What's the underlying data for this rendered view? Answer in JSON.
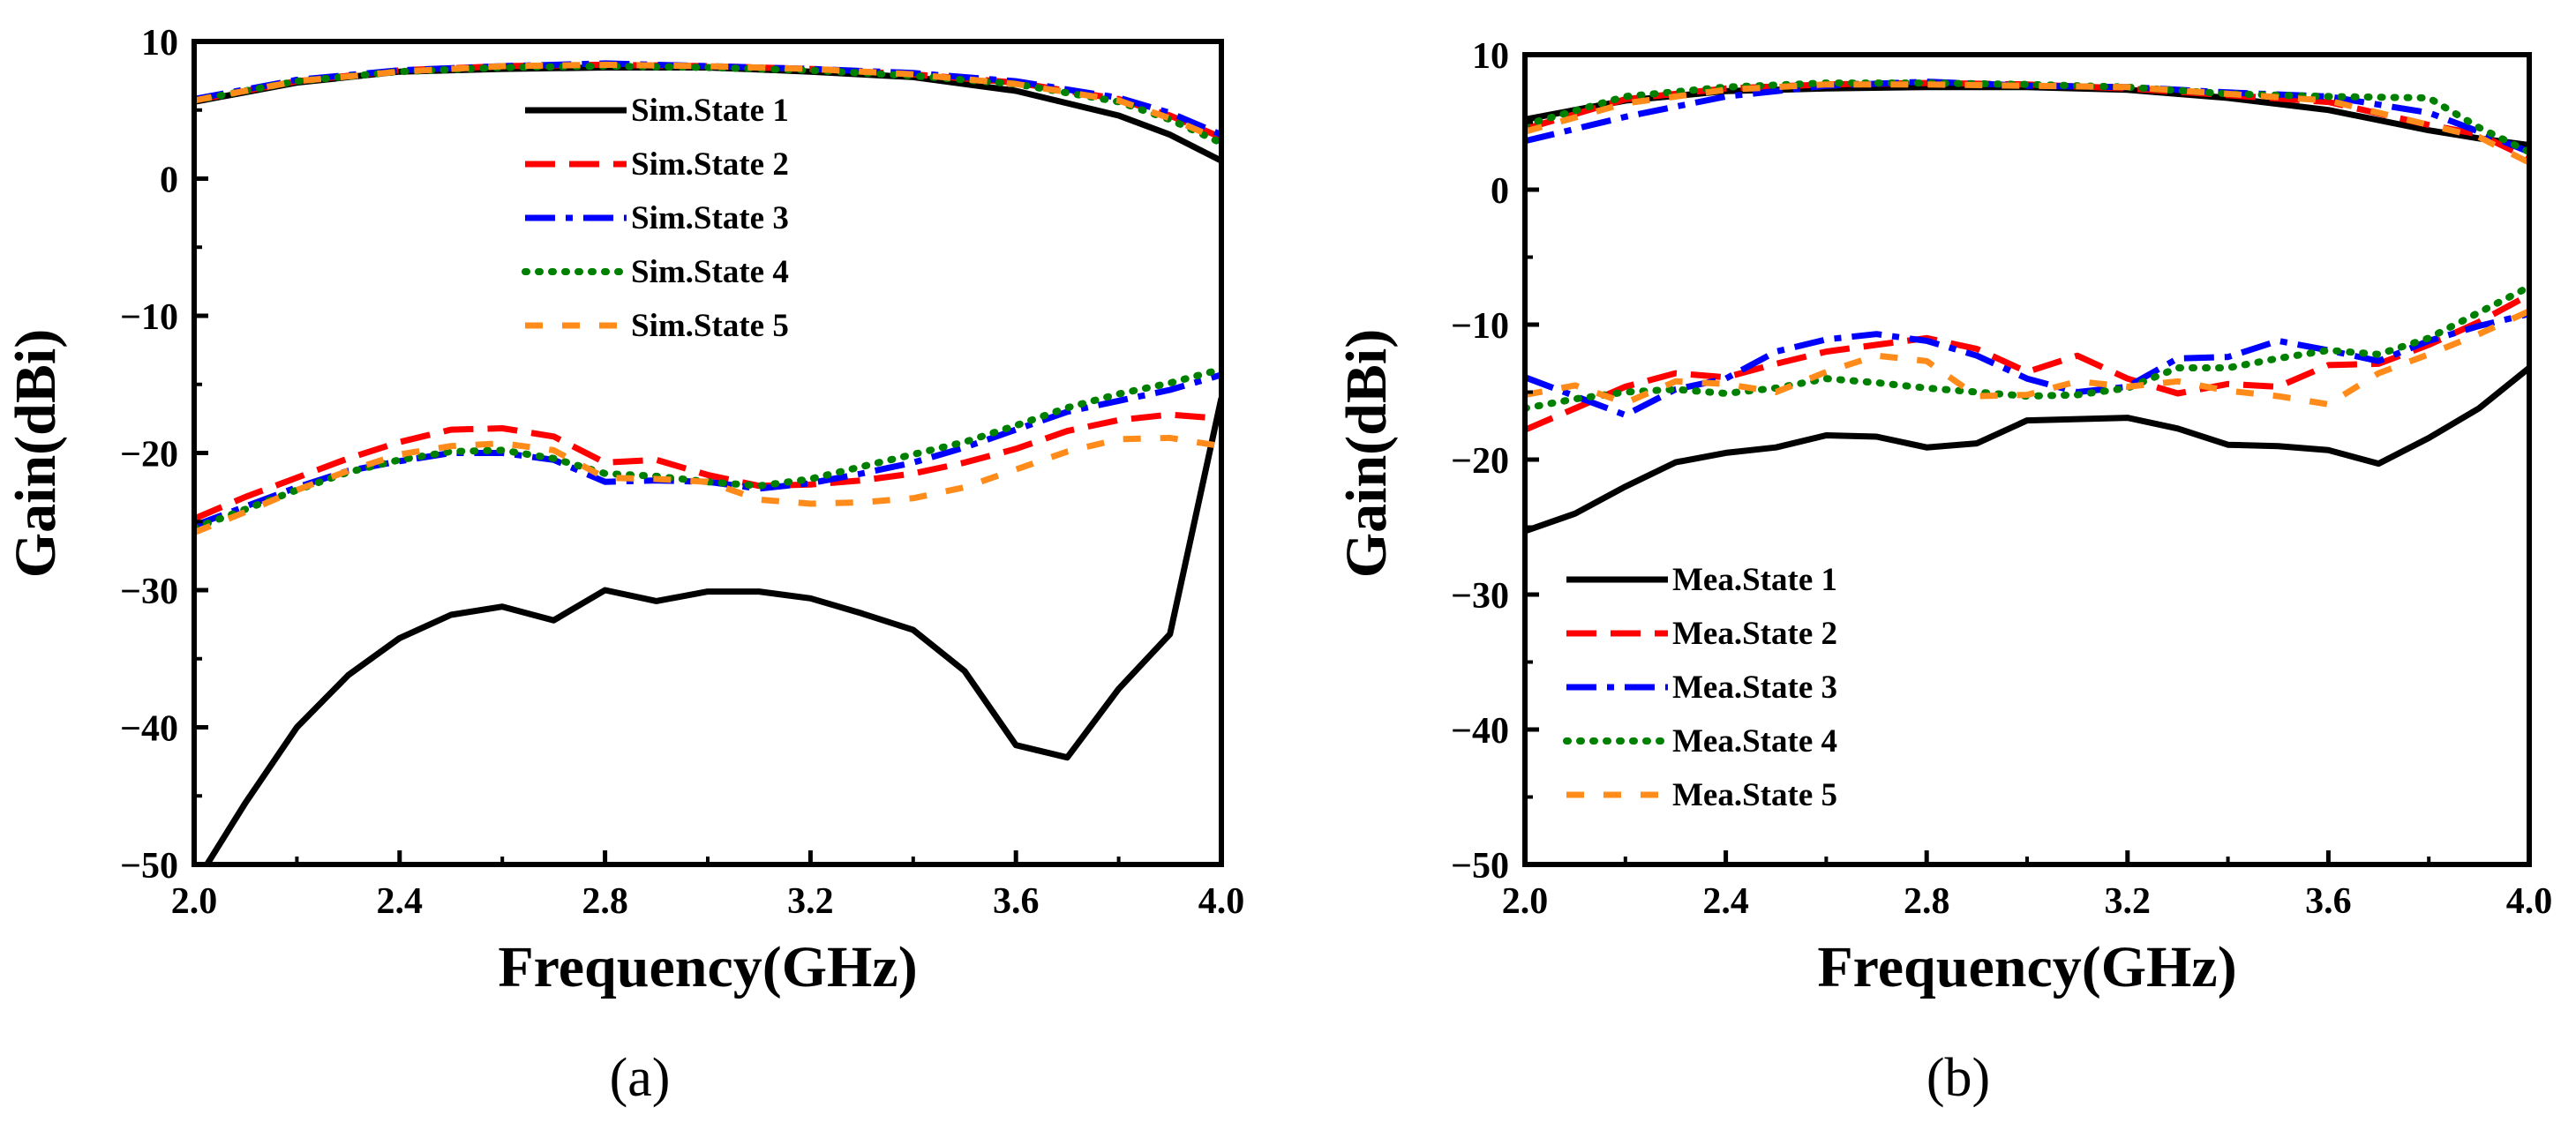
{
  "chart_data": [
    {
      "type": "line",
      "panel_label": "(a)",
      "xlabel": "Frequency(GHz)",
      "ylabel": "Gain(dBi)",
      "xlim": [
        2.0,
        4.0
      ],
      "ylim": [
        -50,
        10
      ],
      "xticks": [
        2.0,
        2.4,
        2.8,
        3.2,
        3.6,
        4.0
      ],
      "xtick_labels": [
        "2.0",
        "2.4",
        "2.8",
        "3.2",
        "3.6",
        "4.0"
      ],
      "yticks": [
        10,
        0,
        -10,
        -20,
        -30,
        -40,
        -50
      ],
      "ytick_labels": [
        "10",
        "0",
        "−10",
        "−20",
        "−30",
        "−40",
        "−50"
      ],
      "legend_position": "upper-center",
      "series": [
        {
          "name": "Sim.State 1",
          "color": "#000000",
          "style": "solid",
          "x": [
            2.0,
            2.1,
            2.2,
            2.3,
            2.4,
            2.5,
            2.6,
            2.7,
            2.8,
            2.9,
            3.0,
            3.1,
            3.2,
            3.3,
            3.4,
            3.5,
            3.6,
            3.7,
            3.8,
            3.9,
            4.0
          ],
          "y": [
            -51.5,
            -45.5,
            -40.0,
            -36.2,
            -33.5,
            -31.8,
            -31.2,
            -32.2,
            -30.0,
            -30.8,
            -30.1,
            -30.1,
            -30.6,
            -31.7,
            -32.9,
            -35.9,
            -41.3,
            -42.2,
            -37.2,
            -33.2,
            -16.0
          ]
        },
        {
          "name": "Sim.State 2",
          "color": "#ff0000",
          "style": "dash",
          "x": [
            2.0,
            2.1,
            2.2,
            2.3,
            2.4,
            2.5,
            2.6,
            2.7,
            2.8,
            2.9,
            3.0,
            3.1,
            3.2,
            3.3,
            3.4,
            3.5,
            3.6,
            3.7,
            3.8,
            3.9,
            4.0
          ],
          "y": [
            -24.8,
            -23.2,
            -21.8,
            -20.4,
            -19.2,
            -18.3,
            -18.2,
            -18.8,
            -20.7,
            -20.5,
            -21.6,
            -22.4,
            -22.3,
            -22.0,
            -21.5,
            -20.7,
            -19.7,
            -18.4,
            -17.6,
            -17.2,
            -17.5
          ]
        },
        {
          "name": "Sim.State 3",
          "color": "#0000ff",
          "style": "dashdot",
          "x": [
            2.0,
            2.1,
            2.2,
            2.3,
            2.4,
            2.5,
            2.6,
            2.7,
            2.8,
            2.9,
            3.0,
            3.1,
            3.2,
            3.3,
            3.4,
            3.5,
            3.6,
            3.7,
            3.8,
            3.9,
            4.0
          ],
          "y": [
            -25.3,
            -23.9,
            -22.5,
            -21.3,
            -20.6,
            -20.0,
            -20.0,
            -20.5,
            -22.1,
            -22.0,
            -22.1,
            -22.6,
            -22.2,
            -21.5,
            -20.7,
            -19.6,
            -18.3,
            -17.0,
            -16.2,
            -15.4,
            -14.3
          ]
        },
        {
          "name": "Sim.State 4",
          "color": "#008000",
          "style": "dot",
          "x": [
            2.0,
            2.1,
            2.2,
            2.3,
            2.4,
            2.5,
            2.6,
            2.7,
            2.8,
            2.9,
            3.0,
            3.1,
            3.2,
            3.3,
            3.4,
            3.5,
            3.6,
            3.7,
            3.8,
            3.9,
            4.0
          ],
          "y": [
            -25.5,
            -24.1,
            -22.7,
            -21.4,
            -20.5,
            -19.9,
            -19.8,
            -20.4,
            -21.5,
            -21.7,
            -22.1,
            -22.4,
            -21.9,
            -21.0,
            -20.1,
            -19.2,
            -18.0,
            -16.7,
            -15.7,
            -14.9,
            -13.9
          ]
        },
        {
          "name": "Sim.State 5",
          "color": "#ff8c1a",
          "style": "longdash",
          "x": [
            2.0,
            2.1,
            2.2,
            2.3,
            2.4,
            2.5,
            2.6,
            2.7,
            2.8,
            2.9,
            3.0,
            3.1,
            3.2,
            3.3,
            3.4,
            3.5,
            3.6,
            3.7,
            3.8,
            3.9,
            4.0
          ],
          "y": [
            -25.8,
            -24.3,
            -22.7,
            -21.3,
            -20.1,
            -19.5,
            -19.3,
            -19.8,
            -21.8,
            -21.9,
            -22.1,
            -23.4,
            -23.7,
            -23.6,
            -23.3,
            -22.5,
            -21.2,
            -19.9,
            -19.0,
            -18.9,
            -19.5
          ]
        },
        {
          "name": "Sim.State 1",
          "legend": false,
          "color": "#000000",
          "style": "solid",
          "x": [
            2.0,
            2.2,
            2.4,
            2.6,
            2.8,
            3.0,
            3.2,
            3.4,
            3.6,
            3.8,
            3.9,
            4.0
          ],
          "y": [
            5.6,
            7.0,
            7.8,
            8.0,
            8.1,
            8.1,
            7.8,
            7.4,
            6.4,
            4.6,
            3.2,
            1.3
          ]
        },
        {
          "name": "Sim.State 2",
          "legend": false,
          "color": "#ff0000",
          "style": "dash",
          "x": [
            2.0,
            2.2,
            2.4,
            2.6,
            2.8,
            3.0,
            3.2,
            3.4,
            3.6,
            3.8,
            3.9,
            4.0
          ],
          "y": [
            5.7,
            7.1,
            7.9,
            8.2,
            8.3,
            8.2,
            8.0,
            7.6,
            7.0,
            5.8,
            4.6,
            3.0
          ]
        },
        {
          "name": "Sim.State 3",
          "legend": false,
          "color": "#0000ff",
          "style": "dashdot",
          "x": [
            2.0,
            2.2,
            2.4,
            2.6,
            2.8,
            3.0,
            3.2,
            3.4,
            3.6,
            3.8,
            3.9,
            4.0
          ],
          "y": [
            5.8,
            7.2,
            7.9,
            8.2,
            8.4,
            8.2,
            8.0,
            7.7,
            7.1,
            5.9,
            4.8,
            3.2
          ]
        },
        {
          "name": "Sim.State 4",
          "legend": false,
          "color": "#008000",
          "style": "dot",
          "x": [
            2.0,
            2.2,
            2.4,
            2.6,
            2.8,
            3.0,
            3.2,
            3.4,
            3.6,
            3.8,
            3.9,
            4.0
          ],
          "y": [
            5.7,
            7.1,
            7.8,
            8.1,
            8.2,
            8.1,
            7.9,
            7.5,
            6.9,
            5.6,
            4.3,
            2.6
          ]
        },
        {
          "name": "Sim.State 5",
          "legend": false,
          "color": "#ff8c1a",
          "style": "longdash",
          "x": [
            2.0,
            2.2,
            2.4,
            2.6,
            2.8,
            3.0,
            3.2,
            3.4,
            3.6,
            3.8,
            3.9,
            4.0
          ],
          "y": [
            5.7,
            7.1,
            7.8,
            8.2,
            8.3,
            8.2,
            8.0,
            7.6,
            6.9,
            5.7,
            4.4,
            2.8
          ]
        }
      ]
    },
    {
      "type": "line",
      "panel_label": "(b)",
      "xlabel": "Frequency(GHz)",
      "ylabel": "Gain(dBi)",
      "xlim": [
        2.0,
        4.0
      ],
      "ylim": [
        -50,
        10
      ],
      "xticks": [
        2.0,
        2.4,
        2.8,
        3.2,
        3.6,
        4.0
      ],
      "xtick_labels": [
        "2.0",
        "2.4",
        "2.8",
        "3.2",
        "3.6",
        "4.0"
      ],
      "yticks": [
        10,
        0,
        -10,
        -20,
        -30,
        -40,
        -50
      ],
      "ytick_labels": [
        "10",
        "0",
        "−10",
        "−20",
        "−30",
        "−40",
        "−50"
      ],
      "legend_position": "lower-left",
      "series": [
        {
          "name": "Mea.State 1",
          "color": "#000000",
          "style": "solid",
          "x": [
            2.0,
            2.1,
            2.2,
            2.3,
            2.4,
            2.5,
            2.6,
            2.7,
            2.8,
            2.9,
            3.0,
            3.1,
            3.2,
            3.3,
            3.4,
            3.5,
            3.6,
            3.7,
            3.8,
            3.9,
            4.0
          ],
          "y": [
            -25.3,
            -24.0,
            -22.0,
            -20.2,
            -19.5,
            -19.1,
            -18.2,
            -18.3,
            -19.1,
            -18.8,
            -17.1,
            -17.0,
            -16.9,
            -17.7,
            -18.9,
            -19.0,
            -19.3,
            -20.3,
            -18.4,
            -16.2,
            -13.2
          ]
        },
        {
          "name": "Mea.State 2",
          "color": "#ff0000",
          "style": "dash",
          "x": [
            2.0,
            2.1,
            2.2,
            2.3,
            2.4,
            2.5,
            2.6,
            2.7,
            2.8,
            2.9,
            3.0,
            3.1,
            3.2,
            3.3,
            3.4,
            3.5,
            3.6,
            3.7,
            3.8,
            3.9,
            4.0
          ],
          "y": [
            -17.8,
            -16.2,
            -14.6,
            -13.6,
            -13.9,
            -12.9,
            -12.0,
            -11.5,
            -11.0,
            -11.8,
            -13.5,
            -12.3,
            -14.0,
            -15.1,
            -14.4,
            -14.6,
            -13.0,
            -12.9,
            -11.5,
            -9.8,
            -7.8
          ]
        },
        {
          "name": "Mea.State 3",
          "color": "#0000ff",
          "style": "dashdot",
          "x": [
            2.0,
            2.1,
            2.2,
            2.3,
            2.4,
            2.5,
            2.6,
            2.7,
            2.8,
            2.9,
            3.0,
            3.1,
            3.2,
            3.3,
            3.4,
            3.5,
            3.6,
            3.7,
            3.8,
            3.9,
            4.0
          ],
          "y": [
            -13.9,
            -15.3,
            -16.7,
            -14.8,
            -14.0,
            -12.0,
            -11.1,
            -10.7,
            -11.2,
            -12.3,
            -14.0,
            -15.0,
            -14.6,
            -12.5,
            -12.4,
            -11.2,
            -11.9,
            -12.7,
            -11.2,
            -10.1,
            -9.2
          ]
        },
        {
          "name": "Mea.State 4",
          "color": "#008000",
          "style": "dot",
          "x": [
            2.0,
            2.1,
            2.2,
            2.3,
            2.4,
            2.5,
            2.6,
            2.7,
            2.8,
            2.9,
            3.0,
            3.1,
            3.2,
            3.3,
            3.4,
            3.5,
            3.6,
            3.7,
            3.8,
            3.9,
            4.0
          ],
          "y": [
            -16.2,
            -15.5,
            -15.0,
            -14.8,
            -15.1,
            -14.7,
            -14.0,
            -14.3,
            -14.7,
            -15.0,
            -15.3,
            -15.2,
            -14.7,
            -13.2,
            -13.2,
            -12.5,
            -11.9,
            -12.2,
            -11.0,
            -9.1,
            -7.2
          ]
        },
        {
          "name": "Mea.State 5",
          "color": "#ff8c1a",
          "style": "longdash",
          "x": [
            2.0,
            2.1,
            2.2,
            2.3,
            2.4,
            2.5,
            2.6,
            2.7,
            2.8,
            2.9,
            3.0,
            3.1,
            3.2,
            3.3,
            3.4,
            3.5,
            3.6,
            3.7,
            3.8,
            3.9,
            4.0
          ],
          "y": [
            -15.2,
            -14.5,
            -15.8,
            -14.2,
            -14.4,
            -15.0,
            -13.5,
            -12.3,
            -12.7,
            -15.3,
            -15.2,
            -14.2,
            -14.6,
            -14.2,
            -14.9,
            -15.3,
            -15.9,
            -13.6,
            -12.2,
            -10.7,
            -9.0
          ]
        },
        {
          "name": "Mea.State 1",
          "legend": false,
          "color": "#000000",
          "style": "solid",
          "x": [
            2.0,
            2.2,
            2.4,
            2.6,
            2.8,
            3.0,
            3.2,
            3.4,
            3.6,
            3.8,
            3.9,
            4.0
          ],
          "y": [
            5.2,
            6.6,
            7.3,
            7.5,
            7.6,
            7.6,
            7.4,
            6.8,
            5.9,
            4.4,
            3.8,
            3.3
          ]
        },
        {
          "name": "Mea.State 2",
          "legend": false,
          "color": "#ff0000",
          "style": "dash",
          "x": [
            2.0,
            2.2,
            2.4,
            2.6,
            2.8,
            3.0,
            3.2,
            3.4,
            3.6,
            3.8,
            3.9,
            4.0
          ],
          "y": [
            4.5,
            6.7,
            7.5,
            7.8,
            7.9,
            7.8,
            7.5,
            7.0,
            6.5,
            4.8,
            4.1,
            2.3
          ]
        },
        {
          "name": "Mea.State 3",
          "legend": false,
          "color": "#0000ff",
          "style": "dashdot",
          "x": [
            2.0,
            2.2,
            2.4,
            2.6,
            2.8,
            3.0,
            3.2,
            3.4,
            3.6,
            3.8,
            3.9,
            4.0
          ],
          "y": [
            3.6,
            5.4,
            6.9,
            7.7,
            8.0,
            7.7,
            7.6,
            7.2,
            6.9,
            5.7,
            4.3,
            2.8
          ]
        },
        {
          "name": "Mea.State 4",
          "legend": false,
          "color": "#008000",
          "style": "dot",
          "x": [
            2.0,
            2.2,
            2.4,
            2.6,
            2.8,
            3.0,
            3.2,
            3.4,
            3.6,
            3.8,
            3.9,
            4.0
          ],
          "y": [
            4.8,
            6.9,
            7.6,
            7.9,
            7.9,
            7.8,
            7.6,
            7.1,
            6.9,
            6.8,
            4.6,
            2.8
          ]
        },
        {
          "name": "Mea.State 5",
          "legend": false,
          "color": "#ff8c1a",
          "style": "longdash",
          "x": [
            2.0,
            2.2,
            2.4,
            2.6,
            2.8,
            3.0,
            3.2,
            3.4,
            3.6,
            3.8,
            3.9,
            4.0
          ],
          "y": [
            4.3,
            6.4,
            7.4,
            7.8,
            7.8,
            7.7,
            7.6,
            7.1,
            6.6,
            4.8,
            3.9,
            2.0
          ]
        }
      ]
    }
  ]
}
